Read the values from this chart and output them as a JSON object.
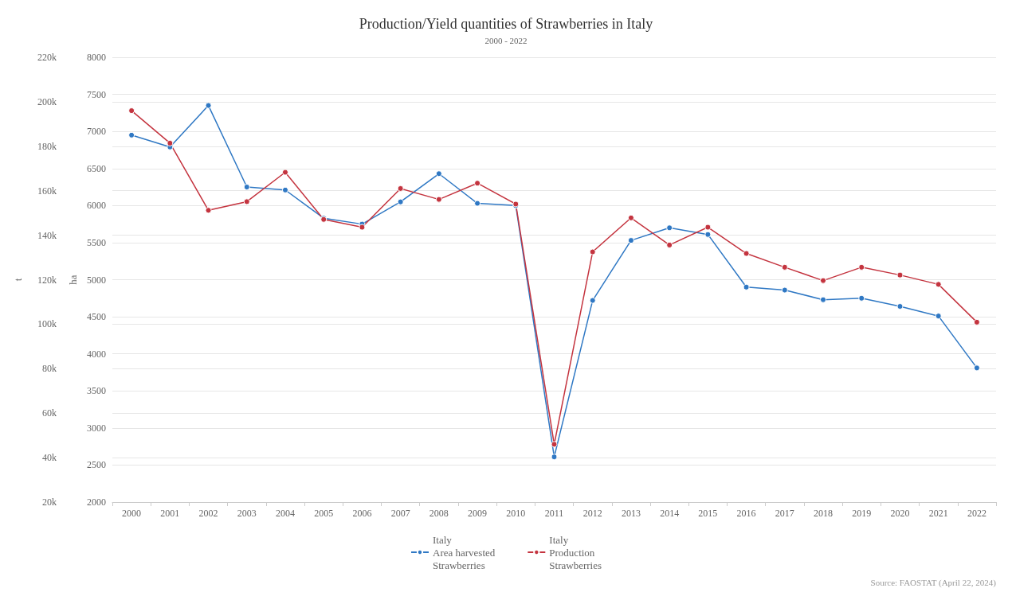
{
  "chart_data": {
    "type": "line",
    "title": "Production/Yield quantities of Strawberries in Italy",
    "subtitle": "2000 - 2022",
    "ylabel": "t",
    "y2label": "ha",
    "categories": [
      "2000",
      "2001",
      "2002",
      "2003",
      "2004",
      "2005",
      "2006",
      "2007",
      "2008",
      "2009",
      "2010",
      "2011",
      "2012",
      "2013",
      "2014",
      "2015",
      "2016",
      "2017",
      "2018",
      "2019",
      "2020",
      "2021",
      "2022"
    ],
    "series": [
      {
        "name": "Italy\nArea harvested\nStrawberries",
        "color": "#2f78c4",
        "axis": "y2",
        "values": [
          6950,
          6790,
          7350,
          6250,
          6210,
          5830,
          5750,
          6050,
          6430,
          6030,
          6000,
          2610,
          4720,
          5530,
          5700,
          5610,
          4900,
          4860,
          4730,
          4750,
          4640,
          4510,
          3810
        ]
      },
      {
        "name": "Italy\nProduction\nStrawberries",
        "color": "#c4343f",
        "values": [
          196000,
          181400,
          151200,
          155100,
          168300,
          147100,
          143600,
          161000,
          156100,
          163400,
          154000,
          46000,
          132500,
          147800,
          135600,
          143600,
          131800,
          125600,
          119600,
          125600,
          122100,
          117900,
          100900
        ]
      }
    ],
    "ylim": [
      20000,
      220000
    ],
    "yticks": [
      {
        "value": 20000,
        "label": "20k"
      },
      {
        "value": 40000,
        "label": "40k"
      },
      {
        "value": 60000,
        "label": "60k"
      },
      {
        "value": 80000,
        "label": "80k"
      },
      {
        "value": 100000,
        "label": "100k"
      },
      {
        "value": 120000,
        "label": "120k"
      },
      {
        "value": 140000,
        "label": "140k"
      },
      {
        "value": 160000,
        "label": "160k"
      },
      {
        "value": 180000,
        "label": "180k"
      },
      {
        "value": 200000,
        "label": "200k"
      },
      {
        "value": 220000,
        "label": "220k"
      }
    ],
    "y2lim": [
      2000,
      8000
    ],
    "y2ticks": [
      2000,
      2500,
      3000,
      3500,
      4000,
      4500,
      5000,
      5500,
      6000,
      6500,
      7000,
      7500,
      8000
    ],
    "grid": "y",
    "legend": "bottom",
    "marker": "circle",
    "line_style": "solid",
    "annotations": [
      "Source: FAOSTAT (April 22, 2024)"
    ]
  }
}
